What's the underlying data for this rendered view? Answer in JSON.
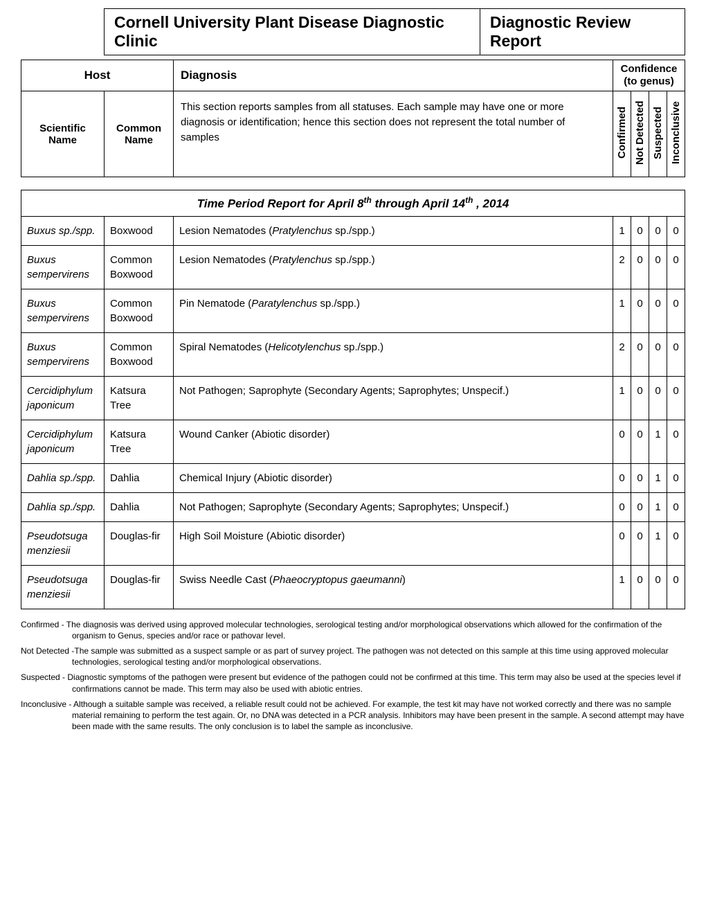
{
  "title_left": "Cornell University Plant Disease Diagnostic Clinic",
  "title_right": "Diagnostic Review Report",
  "header": {
    "host": "Host",
    "diagnosis": "Diagnosis",
    "confidence": "Confidence",
    "to_genus": "(to genus)",
    "scientific_name": "Scientific Name",
    "common_name": "Common Name",
    "description": "This section reports samples from all statuses. Each sample may have one or more diagnosis or identification; hence this section does not represent the total number of samples",
    "col_confirmed": "Confirmed",
    "col_not_detected": "Not Detected",
    "col_suspected": "Suspected",
    "col_inconclusive": "Inconclusive"
  },
  "period_prefix": "Time Period Report for April 8",
  "period_mid": " through April 14",
  "period_suffix": " ,  2014",
  "period_sup": "th",
  "rows": [
    {
      "sci_italic": "Buxus",
      "sci_rest": " sp./spp.",
      "com": "Boxwood",
      "diag_pre": "Lesion Nematodes (",
      "diag_i": "Pratylenchus",
      "diag_post": " sp./spp.)",
      "c": "1",
      "nd": "0",
      "s": "0",
      "i": "0"
    },
    {
      "sci_italic": "Buxus sempervirens",
      "sci_rest": "",
      "com": "Common Boxwood",
      "diag_pre": "Lesion Nematodes (",
      "diag_i": "Pratylenchus",
      "diag_post": " sp./spp.)",
      "c": "2",
      "nd": "0",
      "s": "0",
      "i": "0"
    },
    {
      "sci_italic": "Buxus sempervirens",
      "sci_rest": "",
      "com": "Common Boxwood",
      "diag_pre": "Pin Nematode (",
      "diag_i": "Paratylenchus",
      "diag_post": " sp./spp.)",
      "c": "1",
      "nd": "0",
      "s": "0",
      "i": "0"
    },
    {
      "sci_italic": "Buxus sempervirens",
      "sci_rest": "",
      "com": "Common Boxwood",
      "diag_pre": "Spiral Nematodes (",
      "diag_i": "Helicotylenchus",
      "diag_post": " sp./spp.)",
      "c": "2",
      "nd": "0",
      "s": "0",
      "i": "0"
    },
    {
      "sci_italic": "Cercidiphylum japonicum",
      "sci_rest": "",
      "com": "Katsura Tree",
      "diag_pre": "Not Pathogen; Saprophyte (Secondary Agents; Saprophytes; Unspecif.)",
      "diag_i": "",
      "diag_post": "",
      "c": "1",
      "nd": "0",
      "s": "0",
      "i": "0"
    },
    {
      "sci_italic": "Cercidiphylum japonicum",
      "sci_rest": "",
      "com": "Katsura Tree",
      "diag_pre": "Wound Canker (Abiotic disorder)",
      "diag_i": "",
      "diag_post": "",
      "c": "0",
      "nd": "0",
      "s": "1",
      "i": "0"
    },
    {
      "sci_italic": "Dahlia",
      "sci_rest": " sp./spp.",
      "com": "Dahlia",
      "diag_pre": "Chemical Injury (Abiotic disorder)",
      "diag_i": "",
      "diag_post": "",
      "c": "0",
      "nd": "0",
      "s": "1",
      "i": "0"
    },
    {
      "sci_italic": "Dahlia",
      "sci_rest": " sp./spp.",
      "com": "Dahlia",
      "diag_pre": "Not Pathogen; Saprophyte (Secondary Agents; Saprophytes; Unspecif.)",
      "diag_i": "",
      "diag_post": "",
      "c": "0",
      "nd": "0",
      "s": "1",
      "i": "0"
    },
    {
      "sci_italic": "Pseudotsuga menziesii",
      "sci_rest": "",
      "com": "Douglas-fir",
      "diag_pre": "High Soil Moisture (Abiotic disorder)",
      "diag_i": "",
      "diag_post": "",
      "c": "0",
      "nd": "0",
      "s": "1",
      "i": "0"
    },
    {
      "sci_italic": "Pseudotsuga menziesii",
      "sci_rest": "",
      "com": "Douglas-fir",
      "diag_pre": "Swiss Needle Cast (",
      "diag_i": "Phaeocryptopus gaeumanni",
      "diag_post": ")",
      "c": "1",
      "nd": "0",
      "s": "0",
      "i": "0"
    }
  ],
  "defs": {
    "confirmed": "Confirmed - The diagnosis was derived using approved molecular technologies, serological testing and/or morphological observations which allowed for the confirmation of the organism to Genus, species and/or race or pathovar level.",
    "not_detected": "Not Detected -The sample was submitted as a suspect sample or as part of survey project. The pathogen was not detected on this sample at this time using approved molecular technologies, serological testing and/or morphological observations.",
    "suspected": "Suspected - Diagnostic symptoms of the pathogen were present but evidence of the pathogen could not be confirmed at this time. This term may also be used at the species level if confirmations cannot be made. This term may also be used with abiotic entries.",
    "inconclusive": "Inconclusive - Although a suitable sample was received, a reliable result could not be achieved. For example, the test kit may have not worked correctly and there was no sample material remaining to perform the test again. Or, no DNA was detected in a PCR analysis. Inhibitors may have been present in the sample. A second attempt may have been made with the same results. The only conclusion is to label the sample as inconclusive."
  }
}
